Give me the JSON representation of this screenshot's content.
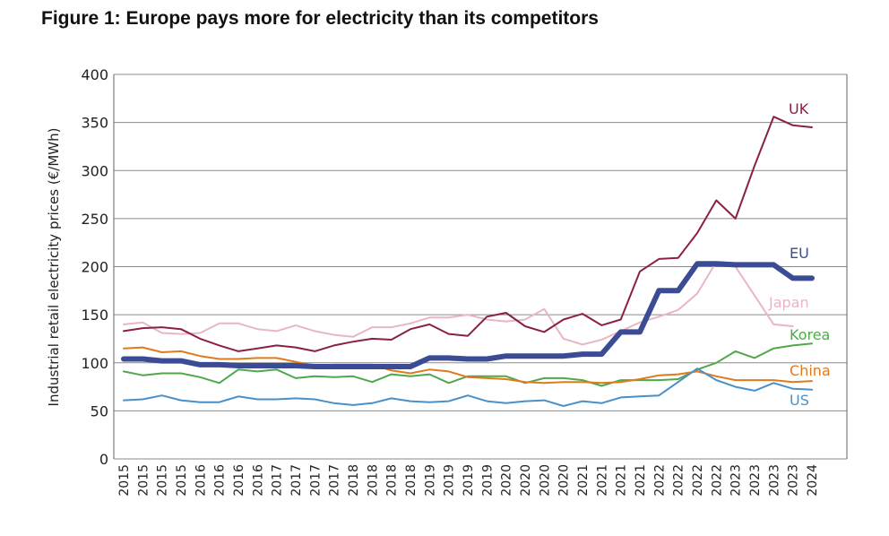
{
  "title": "Figure 1: Europe pays more for electricity than its competitors",
  "chart_data": {
    "type": "line",
    "title": "Figure 1: Europe pays more for electricity than its competitors",
    "xlabel": "",
    "ylabel": "Industrial retail electricity prices (€/MWh)",
    "ylim": [
      0,
      400
    ],
    "yticks": [
      0,
      50,
      100,
      150,
      200,
      250,
      300,
      350,
      400
    ],
    "grid": "horizontal",
    "x": [
      "2015",
      "2015",
      "2015",
      "2015",
      "2016",
      "2016",
      "2016",
      "2016",
      "2017",
      "2017",
      "2017",
      "2017",
      "2018",
      "2018",
      "2018",
      "2018",
      "2019",
      "2019",
      "2019",
      "2019",
      "2020",
      "2020",
      "2020",
      "2020",
      "2021",
      "2021",
      "2021",
      "2021",
      "2022",
      "2022",
      "2022",
      "2022",
      "2023",
      "2023",
      "2023",
      "2023",
      "2024"
    ],
    "series": [
      {
        "name": "UK",
        "color": "#8b2142",
        "width": 2,
        "values": [
          133,
          136,
          137,
          135,
          125,
          118,
          112,
          115,
          118,
          116,
          112,
          118,
          122,
          125,
          124,
          135,
          140,
          130,
          128,
          148,
          152,
          138,
          132,
          145,
          151,
          139,
          145,
          195,
          208,
          209,
          235,
          269,
          250,
          305,
          356,
          347,
          345
        ]
      },
      {
        "name": "EU",
        "color": "#3b4c95",
        "width": 6,
        "values": [
          104,
          104,
          102,
          102,
          98,
          98,
          97,
          97,
          97,
          97,
          96,
          96,
          96,
          96,
          96,
          96,
          105,
          105,
          104,
          104,
          107,
          107,
          107,
          107,
          109,
          109,
          132,
          132,
          175,
          175,
          203,
          203,
          202,
          202,
          202,
          188,
          188
        ]
      },
      {
        "name": "Japan",
        "color": "#e8b6c6",
        "width": 2,
        "values": [
          140,
          142,
          131,
          130,
          131,
          141,
          141,
          135,
          133,
          139,
          133,
          129,
          127,
          137,
          137,
          141,
          147,
          147,
          150,
          145,
          143,
          145,
          156,
          125,
          119,
          124,
          133,
          142,
          148,
          155,
          172,
          205,
          200,
          170,
          140,
          138,
          null
        ]
      },
      {
        "name": "Korea",
        "color": "#4fa84a",
        "width": 2,
        "values": [
          91,
          87,
          89,
          89,
          85,
          79,
          93,
          91,
          93,
          84,
          86,
          85,
          86,
          80,
          88,
          86,
          88,
          79,
          86,
          86,
          86,
          79,
          84,
          84,
          82,
          76,
          82,
          82,
          82,
          83,
          93,
          100,
          112,
          105,
          115,
          118,
          120
        ]
      },
      {
        "name": "China",
        "color": "#e07a1e",
        "width": 2,
        "values": [
          115,
          116,
          111,
          112,
          107,
          104,
          104,
          105,
          105,
          101,
          97,
          98,
          98,
          98,
          92,
          89,
          93,
          91,
          85,
          84,
          83,
          80,
          79,
          80,
          80,
          79,
          80,
          83,
          87,
          88,
          91,
          86,
          82,
          82,
          82,
          80,
          81
        ]
      },
      {
        "name": "US",
        "color": "#4a90c8",
        "width": 2,
        "values": [
          61,
          62,
          66,
          61,
          59,
          59,
          65,
          62,
          62,
          63,
          62,
          58,
          56,
          58,
          63,
          60,
          59,
          60,
          66,
          60,
          58,
          60,
          61,
          55,
          60,
          58,
          64,
          65,
          66,
          80,
          94,
          82,
          75,
          71,
          79,
          73,
          72
        ]
      }
    ]
  }
}
